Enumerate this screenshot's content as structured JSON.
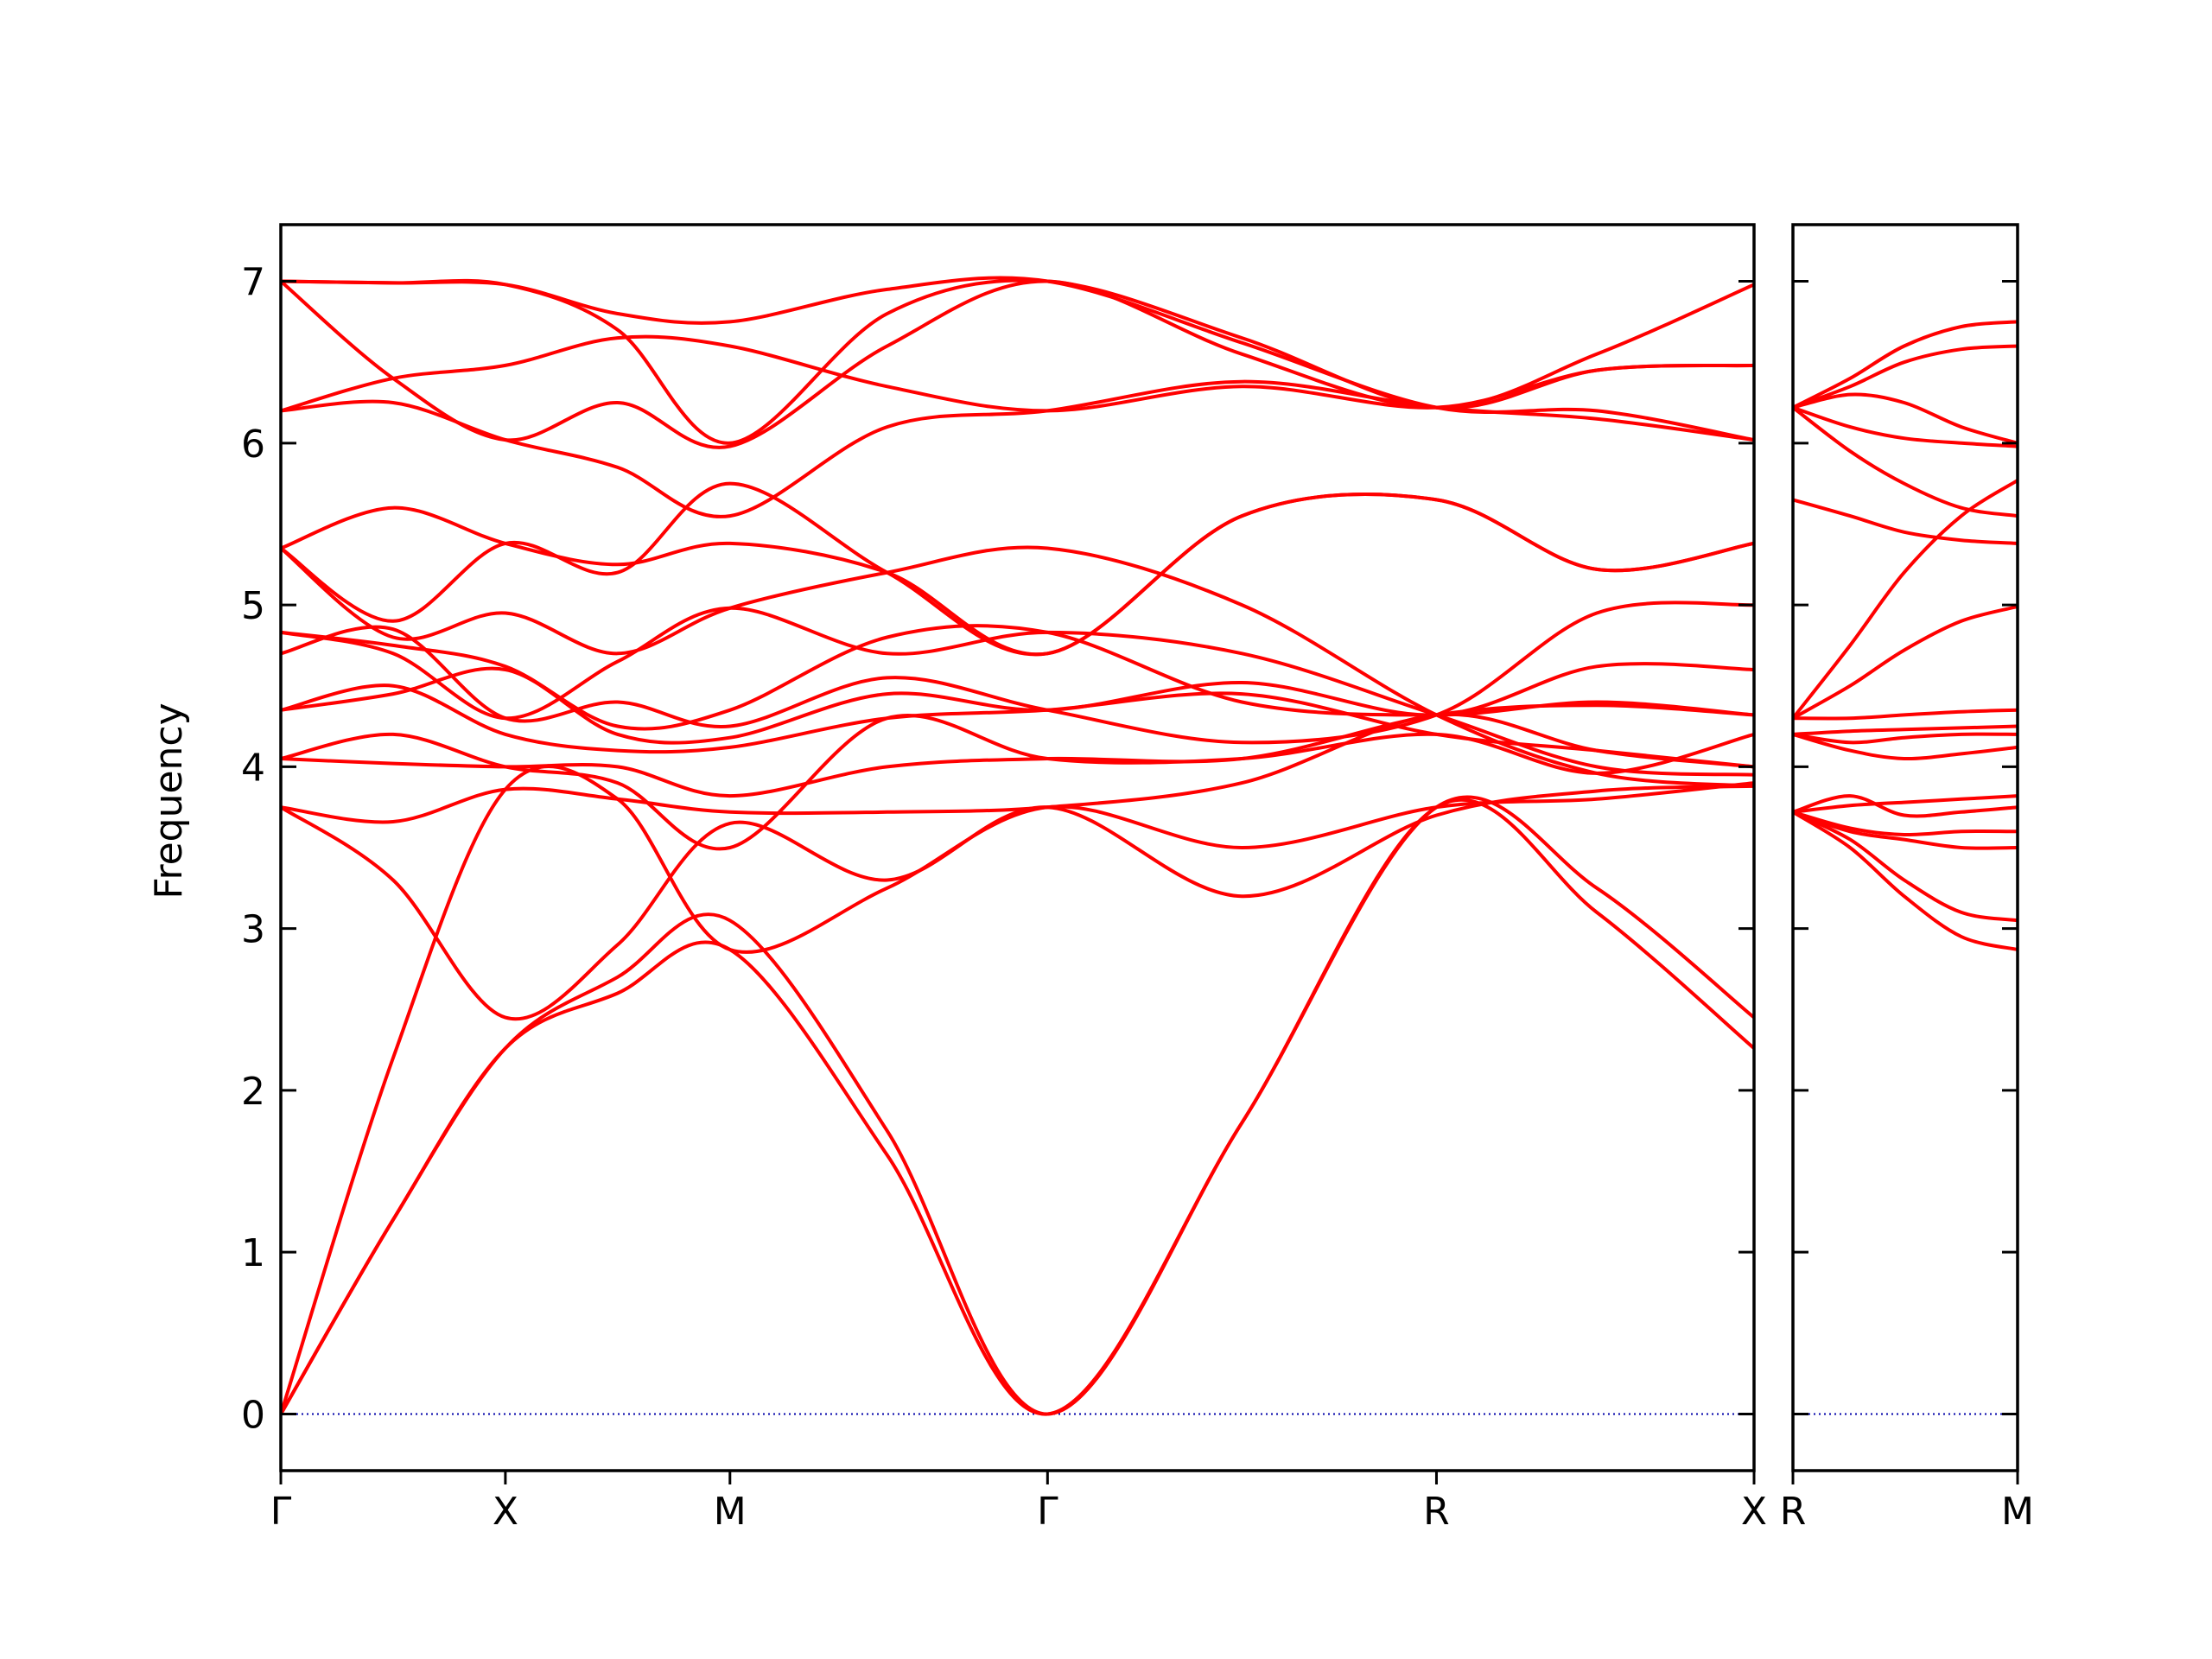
{
  "chart_data": {
    "type": "line",
    "title": "",
    "ylabel": "Frequency",
    "ylim": [
      -0.35,
      7.35
    ],
    "yticks": [
      0,
      1,
      2,
      3,
      4,
      5,
      6,
      7
    ],
    "grid": false,
    "line_color": "#ff0000",
    "zero_line_color": "#0000aa",
    "panels": [
      {
        "xticks": [
          {
            "label": "Γ",
            "x": 0.0
          },
          {
            "label": "X",
            "x": 0.5
          },
          {
            "label": "M",
            "x": 1.0
          },
          {
            "label": "Γ",
            "x": 1.7071
          },
          {
            "label": "R",
            "x": 2.5731
          },
          {
            "label": "X",
            "x": 3.2802
          }
        ],
        "xlim": [
          0.0,
          3.2802
        ],
        "series": [
          {
            "x": [
              0,
              0.25,
              0.5,
              0.75,
              1.0,
              1.35,
              1.7071,
              2.14,
              2.5731,
              2.93,
              3.2802
            ],
            "y": [
              0.0,
              1.2,
              2.26,
              2.6,
              2.87,
              1.6,
              0.0,
              1.8,
              3.75,
              3.1,
              2.26
            ]
          },
          {
            "x": [
              0,
              0.25,
              0.5,
              0.75,
              1.0,
              1.35,
              1.7071,
              2.14,
              2.5731,
              2.93,
              3.2802
            ],
            "y": [
              0.0,
              1.2,
              2.26,
              2.7,
              3.05,
              1.75,
              0.0,
              1.8,
              3.75,
              3.25,
              2.45
            ]
          },
          {
            "x": [
              0,
              0.25,
              0.5,
              0.75,
              1.0,
              1.35,
              1.7071,
              2.14,
              2.5731,
              2.93,
              3.2802
            ],
            "y": [
              0.0,
              2.2,
              3.86,
              3.8,
              2.87,
              3.25,
              3.75,
              3.5,
              3.75,
              3.8,
              3.9
            ]
          },
          {
            "x": [
              0,
              0.25,
              0.5,
              0.75,
              1.0,
              1.35,
              1.7071,
              2.14,
              2.5731,
              2.93,
              3.2802
            ],
            "y": [
              3.75,
              3.3,
              2.45,
              2.9,
              3.65,
              3.3,
              3.75,
              3.2,
              3.7,
              3.85,
              3.88
            ]
          },
          {
            "x": [
              0,
              0.25,
              0.5,
              0.75,
              1.0,
              1.35,
              1.7071,
              2.14,
              2.5731,
              2.93,
              3.2802
            ],
            "y": [
              3.75,
              3.66,
              3.86,
              3.8,
              3.72,
              3.72,
              3.75,
              3.9,
              4.32,
              4.1,
              4.0
            ]
          },
          {
            "x": [
              0,
              0.25,
              0.5,
              0.75,
              1.0,
              1.35,
              1.7071,
              2.14,
              2.5731,
              2.93,
              3.2802
            ],
            "y": [
              4.05,
              4.02,
              4.0,
              4.0,
              3.82,
              4.0,
              4.05,
              4.05,
              4.32,
              4.38,
              4.32
            ]
          },
          {
            "x": [
              0,
              0.25,
              0.5,
              0.75,
              1.0,
              1.35,
              1.7071,
              2.14,
              2.5731,
              2.93,
              3.2802
            ],
            "y": [
              4.05,
              4.2,
              4.0,
              3.9,
              3.5,
              4.3,
              4.05,
              4.05,
              4.2,
              3.96,
              4.2
            ]
          },
          {
            "x": [
              0,
              0.25,
              0.5,
              0.75,
              1.0,
              1.35,
              1.7071,
              2.14,
              2.5731,
              2.93,
              3.2802
            ],
            "y": [
              4.35,
              4.5,
              4.2,
              4.1,
              4.12,
              4.3,
              4.35,
              4.45,
              4.2,
              4.1,
              4.0
            ]
          },
          {
            "x": [
              0,
              0.25,
              0.5,
              0.75,
              1.0,
              1.35,
              1.7071,
              2.14,
              2.5731,
              2.93,
              3.2802
            ],
            "y": [
              4.35,
              4.45,
              4.6,
              4.2,
              4.18,
              4.45,
              4.35,
              4.52,
              4.32,
              4.62,
              4.6
            ]
          },
          {
            "x": [
              0,
              0.25,
              0.5,
              0.75,
              1.0,
              1.35,
              1.7071,
              2.14,
              2.5731,
              2.93,
              3.2802
            ],
            "y": [
              4.7,
              4.85,
              4.3,
              4.4,
              4.25,
              4.55,
              4.35,
              4.15,
              4.32,
              4.95,
              5.0
            ]
          },
          {
            "x": [
              0,
              0.25,
              0.5,
              0.75,
              1.0,
              1.35,
              1.7071,
              2.14,
              2.5731,
              2.93,
              3.2802
            ],
            "y": [
              4.83,
              4.75,
              4.62,
              4.25,
              4.35,
              4.8,
              4.83,
              4.4,
              4.32,
              4.4,
              4.32
            ]
          },
          {
            "x": [
              0,
              0.25,
              0.5,
              0.75,
              1.0,
              1.35,
              1.7071,
              2.14,
              2.5731,
              2.93,
              3.2802
            ],
            "y": [
              4.83,
              4.7,
              4.3,
              4.65,
              4.98,
              4.7,
              4.83,
              4.7,
              4.32,
              4.0,
              3.95
            ]
          },
          {
            "x": [
              0,
              0.25,
              0.5,
              0.75,
              1.0,
              1.35,
              1.7071,
              2.14,
              2.5731,
              2.93,
              3.2802
            ],
            "y": [
              5.35,
              4.8,
              4.95,
              4.7,
              4.98,
              5.2,
              5.35,
              5.0,
              4.32,
              3.96,
              3.88
            ]
          },
          {
            "x": [
              0,
              0.25,
              0.5,
              0.75,
              1.0,
              1.35,
              1.7071,
              2.14,
              2.5731,
              2.93,
              3.2802
            ],
            "y": [
              5.35,
              5.6,
              5.38,
              5.25,
              5.38,
              5.2,
              4.7,
              5.55,
              5.65,
              5.22,
              5.38
            ]
          },
          {
            "x": [
              0,
              0.25,
              0.5,
              0.75,
              1.0,
              1.35,
              1.7071,
              2.14,
              2.5731,
              2.93,
              3.2802
            ],
            "y": [
              5.35,
              4.9,
              5.38,
              5.2,
              5.75,
              5.2,
              4.7,
              5.55,
              5.65,
              5.22,
              5.38
            ]
          },
          {
            "x": [
              0,
              0.25,
              0.5,
              0.75,
              1.0,
              1.35,
              1.7071,
              2.14,
              2.5731,
              2.93,
              3.2802
            ],
            "y": [
              6.2,
              6.25,
              6.02,
              5.85,
              5.55,
              6.1,
              6.2,
              6.38,
              6.22,
              6.15,
              6.02
            ]
          },
          {
            "x": [
              0,
              0.25,
              0.5,
              0.75,
              1.0,
              1.35,
              1.7071,
              2.14,
              2.5731,
              2.93,
              3.2802
            ],
            "y": [
              6.2,
              6.4,
              6.48,
              6.65,
              6.6,
              6.35,
              6.2,
              6.35,
              6.22,
              6.45,
              6.48
            ]
          },
          {
            "x": [
              0,
              0.25,
              0.5,
              0.75,
              1.0,
              1.35,
              1.7071,
              2.14,
              2.5731,
              2.93,
              3.2802
            ],
            "y": [
              7.0,
              6.4,
              6.02,
              6.25,
              5.98,
              6.6,
              7.0,
              6.55,
              6.22,
              6.55,
              6.98
            ]
          },
          {
            "x": [
              0,
              0.25,
              0.5,
              0.75,
              1.0,
              1.35,
              1.7071,
              2.14,
              2.5731,
              2.93,
              3.2802
            ],
            "y": [
              7.0,
              6.99,
              6.98,
              6.7,
              6.0,
              6.8,
              7.0,
              6.65,
              6.22,
              6.45,
              6.48
            ]
          },
          {
            "x": [
              0,
              0.25,
              0.5,
              0.75,
              1.0,
              1.35,
              1.7071,
              2.14,
              2.5731,
              2.93,
              3.2802
            ],
            "y": [
              7.0,
              6.99,
              6.98,
              6.8,
              6.75,
              6.95,
              7.0,
              6.62,
              6.22,
              6.2,
              6.02
            ]
          }
        ]
      },
      {
        "xticks": [
          {
            "label": "R",
            "x": 0.0
          },
          {
            "label": "M",
            "x": 0.7071
          }
        ],
        "xlim": [
          0.0,
          0.7071
        ],
        "series": [
          {
            "x": [
              0,
              0.18,
              0.35,
              0.53,
              0.7071
            ],
            "y": [
              3.72,
              3.5,
              3.2,
              2.95,
              2.87
            ]
          },
          {
            "x": [
              0,
              0.18,
              0.35,
              0.53,
              0.7071
            ],
            "y": [
              3.72,
              3.55,
              3.3,
              3.1,
              3.05
            ]
          },
          {
            "x": [
              0,
              0.18,
              0.35,
              0.53,
              0.7071
            ],
            "y": [
              3.72,
              3.6,
              3.55,
              3.5,
              3.5
            ]
          },
          {
            "x": [
              0,
              0.18,
              0.35,
              0.53,
              0.7071
            ],
            "y": [
              3.72,
              3.62,
              3.58,
              3.6,
              3.6
            ]
          },
          {
            "x": [
              0,
              0.18,
              0.35,
              0.53,
              0.7071
            ],
            "y": [
              3.72,
              3.82,
              3.7,
              3.72,
              3.75
            ]
          },
          {
            "x": [
              0,
              0.18,
              0.35,
              0.53,
              0.7071
            ],
            "y": [
              3.72,
              3.76,
              3.78,
              3.8,
              3.82
            ]
          },
          {
            "x": [
              0,
              0.18,
              0.35,
              0.53,
              0.7071
            ],
            "y": [
              4.2,
              4.1,
              4.05,
              4.08,
              4.12
            ]
          },
          {
            "x": [
              0,
              0.18,
              0.35,
              0.53,
              0.7071
            ],
            "y": [
              4.2,
              4.15,
              4.18,
              4.2,
              4.2
            ]
          },
          {
            "x": [
              0,
              0.18,
              0.35,
              0.53,
              0.7071
            ],
            "y": [
              4.2,
              4.22,
              4.23,
              4.24,
              4.25
            ]
          },
          {
            "x": [
              0,
              0.18,
              0.35,
              0.53,
              0.7071
            ],
            "y": [
              4.3,
              4.3,
              4.32,
              4.34,
              4.35
            ]
          },
          {
            "x": [
              0,
              0.18,
              0.35,
              0.53,
              0.7071
            ],
            "y": [
              4.3,
              4.5,
              4.72,
              4.9,
              4.99
            ]
          },
          {
            "x": [
              0,
              0.18,
              0.35,
              0.53,
              0.7071
            ],
            "y": [
              4.3,
              4.75,
              5.2,
              5.55,
              5.77
            ]
          },
          {
            "x": [
              0,
              0.18,
              0.35,
              0.53,
              0.7071
            ],
            "y": [
              5.65,
              5.55,
              5.45,
              5.4,
              5.38
            ]
          },
          {
            "x": [
              0,
              0.18,
              0.35,
              0.53,
              0.7071
            ],
            "y": [
              6.22,
              5.95,
              5.75,
              5.6,
              5.55
            ]
          },
          {
            "x": [
              0,
              0.18,
              0.35,
              0.53,
              0.7071
            ],
            "y": [
              6.22,
              6.1,
              6.03,
              6.0,
              5.98
            ]
          },
          {
            "x": [
              0,
              0.18,
              0.35,
              0.53,
              0.7071
            ],
            "y": [
              6.22,
              6.3,
              6.25,
              6.1,
              6.0
            ]
          },
          {
            "x": [
              0,
              0.18,
              0.35,
              0.53,
              0.7071
            ],
            "y": [
              6.22,
              6.35,
              6.5,
              6.58,
              6.6
            ]
          },
          {
            "x": [
              0,
              0.18,
              0.35,
              0.53,
              0.7071
            ],
            "y": [
              6.22,
              6.4,
              6.6,
              6.72,
              6.75
            ]
          }
        ]
      }
    ]
  }
}
